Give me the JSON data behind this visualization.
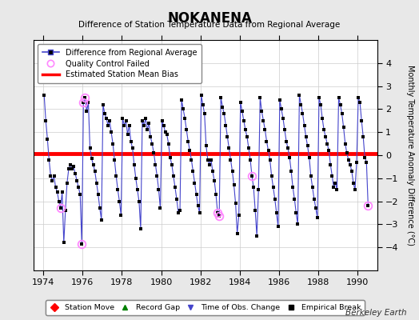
{
  "title": "NOKANENA",
  "subtitle": "Difference of Station Temperature Data from Regional Average",
  "ylabel": "Monthly Temperature Anomaly Difference (°C)",
  "xlim": [
    1973.5,
    1991.0
  ],
  "ylim": [
    -5,
    5
  ],
  "yticks": [
    -4,
    -3,
    -2,
    -1,
    0,
    1,
    2,
    3,
    4
  ],
  "xticks": [
    1974,
    1976,
    1978,
    1980,
    1982,
    1984,
    1986,
    1988,
    1990
  ],
  "mean_bias": 0.07,
  "background_color": "#e8e8e8",
  "plot_bg_color": "#ffffff",
  "line_color": "#4444cc",
  "bias_color": "#ff0000",
  "marker_color": "#000000",
  "qc_color": "#ff88ff",
  "watermark": "Berkeley Earth",
  "data": [
    [
      1974.042,
      2.6
    ],
    [
      1974.125,
      1.5
    ],
    [
      1974.208,
      0.7
    ],
    [
      1974.292,
      -0.2
    ],
    [
      1974.375,
      -0.9
    ],
    [
      1974.458,
      -1.1
    ],
    [
      1974.542,
      -0.9
    ],
    [
      1974.625,
      -1.4
    ],
    [
      1974.708,
      -1.6
    ],
    [
      1974.792,
      -2.0
    ],
    [
      1974.875,
      -2.3
    ],
    [
      1974.958,
      -1.6
    ],
    [
      1975.042,
      -3.8
    ],
    [
      1975.125,
      -2.4
    ],
    [
      1975.208,
      -1.2
    ],
    [
      1975.292,
      -0.6
    ],
    [
      1975.375,
      -0.4
    ],
    [
      1975.458,
      -0.6
    ],
    [
      1975.542,
      -0.5
    ],
    [
      1975.625,
      -0.8
    ],
    [
      1975.708,
      -1.1
    ],
    [
      1975.792,
      -1.4
    ],
    [
      1975.875,
      -1.7
    ],
    [
      1975.958,
      -3.85
    ],
    [
      1976.042,
      2.3
    ],
    [
      1976.125,
      2.5
    ],
    [
      1976.208,
      1.9
    ],
    [
      1976.292,
      2.3
    ],
    [
      1976.375,
      0.3
    ],
    [
      1976.458,
      -0.15
    ],
    [
      1976.542,
      -0.4
    ],
    [
      1976.625,
      -0.7
    ],
    [
      1976.708,
      -1.2
    ],
    [
      1976.792,
      -1.7
    ],
    [
      1976.875,
      -2.3
    ],
    [
      1976.958,
      -2.8
    ],
    [
      1977.042,
      2.2
    ],
    [
      1977.125,
      1.8
    ],
    [
      1977.208,
      1.6
    ],
    [
      1977.292,
      1.3
    ],
    [
      1977.375,
      1.5
    ],
    [
      1977.458,
      1.0
    ],
    [
      1977.542,
      0.5
    ],
    [
      1977.625,
      -0.2
    ],
    [
      1977.708,
      -0.9
    ],
    [
      1977.792,
      -1.5
    ],
    [
      1977.875,
      -2.0
    ],
    [
      1977.958,
      -2.6
    ],
    [
      1978.042,
      1.6
    ],
    [
      1978.125,
      1.3
    ],
    [
      1978.208,
      1.5
    ],
    [
      1978.292,
      0.9
    ],
    [
      1978.375,
      1.3
    ],
    [
      1978.458,
      0.6
    ],
    [
      1978.542,
      0.3
    ],
    [
      1978.625,
      -0.4
    ],
    [
      1978.708,
      -1.0
    ],
    [
      1978.792,
      -1.5
    ],
    [
      1978.875,
      -2.0
    ],
    [
      1978.958,
      -3.2
    ],
    [
      1979.042,
      1.5
    ],
    [
      1979.125,
      1.3
    ],
    [
      1979.208,
      1.6
    ],
    [
      1979.292,
      1.1
    ],
    [
      1979.375,
      1.4
    ],
    [
      1979.458,
      0.8
    ],
    [
      1979.542,
      0.5
    ],
    [
      1979.625,
      0.1
    ],
    [
      1979.708,
      -0.4
    ],
    [
      1979.792,
      -0.9
    ],
    [
      1979.875,
      -1.5
    ],
    [
      1979.958,
      -2.3
    ],
    [
      1980.042,
      1.5
    ],
    [
      1980.125,
      1.3
    ],
    [
      1980.208,
      1.0
    ],
    [
      1980.292,
      0.9
    ],
    [
      1980.375,
      0.5
    ],
    [
      1980.458,
      -0.1
    ],
    [
      1980.542,
      -0.4
    ],
    [
      1980.625,
      -0.9
    ],
    [
      1980.708,
      -1.4
    ],
    [
      1980.792,
      -1.9
    ],
    [
      1980.875,
      -2.5
    ],
    [
      1980.958,
      -2.4
    ],
    [
      1981.042,
      2.4
    ],
    [
      1981.125,
      2.0
    ],
    [
      1981.208,
      1.6
    ],
    [
      1981.292,
      1.1
    ],
    [
      1981.375,
      0.6
    ],
    [
      1981.458,
      0.2
    ],
    [
      1981.542,
      -0.2
    ],
    [
      1981.625,
      -0.7
    ],
    [
      1981.708,
      -1.2
    ],
    [
      1981.792,
      -1.7
    ],
    [
      1981.875,
      -2.2
    ],
    [
      1981.958,
      -2.5
    ],
    [
      1982.042,
      2.6
    ],
    [
      1982.125,
      2.2
    ],
    [
      1982.208,
      1.8
    ],
    [
      1982.292,
      0.4
    ],
    [
      1982.375,
      -0.2
    ],
    [
      1982.458,
      -0.4
    ],
    [
      1982.542,
      -0.2
    ],
    [
      1982.625,
      -0.7
    ],
    [
      1982.708,
      -1.1
    ],
    [
      1982.792,
      -1.7
    ],
    [
      1982.875,
      -2.5
    ],
    [
      1982.958,
      -2.65
    ],
    [
      1983.042,
      2.5
    ],
    [
      1983.125,
      2.1
    ],
    [
      1983.208,
      1.8
    ],
    [
      1983.292,
      1.3
    ],
    [
      1983.375,
      0.8
    ],
    [
      1983.458,
      0.3
    ],
    [
      1983.542,
      -0.2
    ],
    [
      1983.625,
      -0.7
    ],
    [
      1983.708,
      -1.3
    ],
    [
      1983.792,
      -2.1
    ],
    [
      1983.875,
      -3.4
    ],
    [
      1983.958,
      -2.6
    ],
    [
      1984.042,
      2.3
    ],
    [
      1984.125,
      1.9
    ],
    [
      1984.208,
      1.5
    ],
    [
      1984.292,
      1.1
    ],
    [
      1984.375,
      0.8
    ],
    [
      1984.458,
      0.3
    ],
    [
      1984.542,
      -0.2
    ],
    [
      1984.625,
      -0.9
    ],
    [
      1984.708,
      -1.4
    ],
    [
      1984.792,
      -2.4
    ],
    [
      1984.875,
      -3.5
    ],
    [
      1984.958,
      -1.5
    ],
    [
      1985.042,
      2.5
    ],
    [
      1985.125,
      1.9
    ],
    [
      1985.208,
      1.5
    ],
    [
      1985.292,
      1.1
    ],
    [
      1985.375,
      0.6
    ],
    [
      1985.458,
      0.2
    ],
    [
      1985.542,
      -0.2
    ],
    [
      1985.625,
      -0.9
    ],
    [
      1985.708,
      -1.4
    ],
    [
      1985.792,
      -1.9
    ],
    [
      1985.875,
      -2.5
    ],
    [
      1985.958,
      -3.1
    ],
    [
      1986.042,
      2.4
    ],
    [
      1986.125,
      2.0
    ],
    [
      1986.208,
      1.6
    ],
    [
      1986.292,
      1.1
    ],
    [
      1986.375,
      0.6
    ],
    [
      1986.458,
      0.3
    ],
    [
      1986.542,
      -0.1
    ],
    [
      1986.625,
      -0.7
    ],
    [
      1986.708,
      -1.4
    ],
    [
      1986.792,
      -1.9
    ],
    [
      1986.875,
      -2.5
    ],
    [
      1986.958,
      -3.0
    ],
    [
      1987.042,
      2.6
    ],
    [
      1987.125,
      2.2
    ],
    [
      1987.208,
      1.8
    ],
    [
      1987.292,
      1.3
    ],
    [
      1987.375,
      0.8
    ],
    [
      1987.458,
      0.4
    ],
    [
      1987.542,
      -0.1
    ],
    [
      1987.625,
      -0.9
    ],
    [
      1987.708,
      -1.4
    ],
    [
      1987.792,
      -1.9
    ],
    [
      1987.875,
      -2.3
    ],
    [
      1987.958,
      -2.7
    ],
    [
      1988.042,
      2.5
    ],
    [
      1988.125,
      2.2
    ],
    [
      1988.208,
      1.6
    ],
    [
      1988.292,
      1.1
    ],
    [
      1988.375,
      0.8
    ],
    [
      1988.458,
      0.5
    ],
    [
      1988.542,
      0.2
    ],
    [
      1988.625,
      -0.4
    ],
    [
      1988.708,
      -0.9
    ],
    [
      1988.792,
      -1.4
    ],
    [
      1988.875,
      -1.2
    ],
    [
      1988.958,
      -1.5
    ],
    [
      1989.042,
      2.5
    ],
    [
      1989.125,
      2.2
    ],
    [
      1989.208,
      1.8
    ],
    [
      1989.292,
      1.2
    ],
    [
      1989.375,
      0.5
    ],
    [
      1989.458,
      0.1
    ],
    [
      1989.542,
      -0.2
    ],
    [
      1989.625,
      -0.4
    ],
    [
      1989.708,
      -0.7
    ],
    [
      1989.792,
      -1.2
    ],
    [
      1989.875,
      -1.5
    ],
    [
      1989.958,
      -0.3
    ],
    [
      1990.042,
      2.5
    ],
    [
      1990.125,
      2.3
    ],
    [
      1990.208,
      1.5
    ],
    [
      1990.292,
      0.8
    ],
    [
      1990.375,
      -0.1
    ],
    [
      1990.458,
      -0.3
    ],
    [
      1990.542,
      -2.2
    ]
  ],
  "qc_failed": [
    [
      1974.875,
      -2.3
    ],
    [
      1975.958,
      -3.85
    ],
    [
      1976.042,
      2.3
    ],
    [
      1976.125,
      2.5
    ],
    [
      1982.875,
      -2.5
    ],
    [
      1982.958,
      -2.65
    ],
    [
      1984.625,
      -0.9
    ],
    [
      1990.542,
      -2.2
    ]
  ]
}
